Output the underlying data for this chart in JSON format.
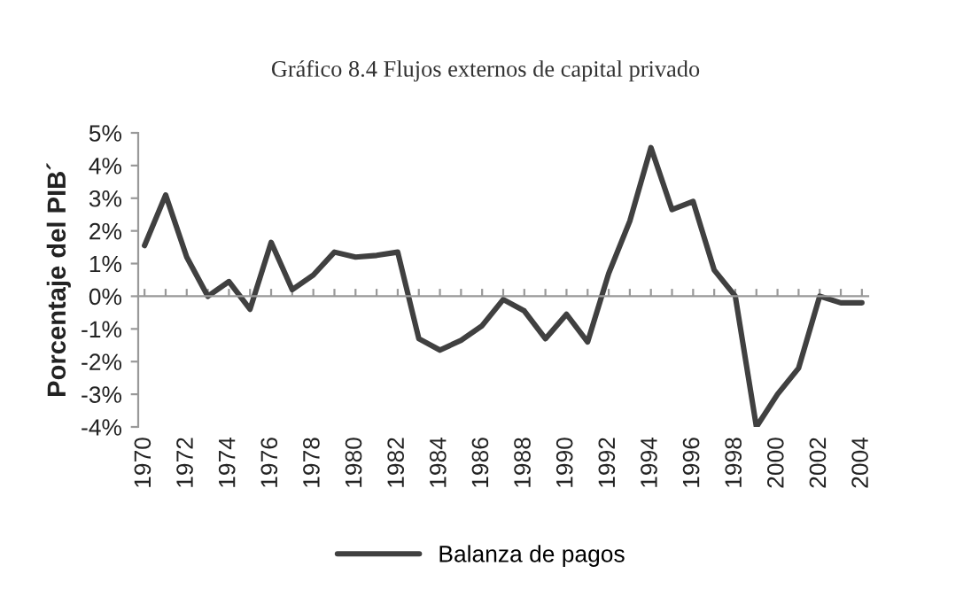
{
  "chart_data": {
    "type": "line",
    "title": "Gráfico 8.4 Flujos externos de capital privado",
    "ylabel": "Porcentaje del PIB´",
    "categories": [
      "1970",
      null,
      "1972",
      null,
      "1974",
      null,
      "1976",
      null,
      "1978",
      null,
      "1980",
      null,
      "1982",
      null,
      "1984",
      null,
      "1986",
      null,
      "1988",
      null,
      "1990",
      null,
      "1992",
      null,
      "1994",
      null,
      "1996",
      null,
      "1998",
      null,
      "2000",
      null,
      "2002",
      null,
      "2004"
    ],
    "series": [
      {
        "name": "Balanza de pagos",
        "color": "#404040",
        "values": [
          1.55,
          3.1,
          1.2,
          0.0,
          0.45,
          -0.4,
          1.65,
          0.2,
          0.65,
          1.35,
          1.2,
          1.25,
          1.35,
          -1.3,
          -1.65,
          -1.35,
          -0.9,
          -0.1,
          -0.45,
          -1.3,
          -0.55,
          -1.4,
          0.7,
          2.3,
          4.55,
          2.65,
          2.9,
          0.8,
          0.0,
          -4.0,
          -3.0,
          -2.2,
          0.0,
          -0.2,
          -0.2
        ]
      }
    ],
    "ylim": [
      -4,
      5
    ],
    "yticks": [
      {
        "value": -4,
        "label": "-4%"
      },
      {
        "value": -3,
        "label": "-3%"
      },
      {
        "value": -2,
        "label": "-2%"
      },
      {
        "value": -1,
        "label": "-1%"
      },
      {
        "value": 0,
        "label": "0%"
      },
      {
        "value": 1,
        "label": "1%"
      },
      {
        "value": 2,
        "label": "2%"
      },
      {
        "value": 3,
        "label": "3%"
      },
      {
        "value": 4,
        "label": "4%"
      },
      {
        "value": 5,
        "label": "5%"
      }
    ],
    "legend": "bottom",
    "marker": "none",
    "line_style": "solid"
  }
}
